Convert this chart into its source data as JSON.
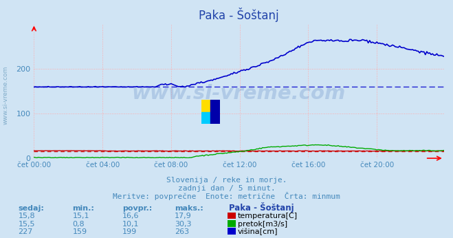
{
  "title": "Paka - Šoštanj",
  "background_color": "#d0e4f4",
  "plot_bg_color": "#d0e4f4",
  "grid_color": "#ffaaaa",
  "tick_color": "#4488bb",
  "title_color": "#2244aa",
  "text_color": "#4488bb",
  "watermark": "www.si-vreme.com",
  "subtitle_lines": [
    "Slovenija / reke in morje.",
    "zadnji dan / 5 minut.",
    "Meritve: povprečne  Enote: metrične  Črta: minmum"
  ],
  "legend_title": "Paka - Šoštanj",
  "legend_rows": [
    {
      "sedaj": "15,8",
      "min": "15,1",
      "povpr": "16,6",
      "maks": "17,9",
      "color": "#cc0000",
      "label": "temperatura[C]"
    },
    {
      "sedaj": "15,5",
      "min": "0,8",
      "povpr": "10,1",
      "maks": "30,3",
      "color": "#00aa00",
      "label": "pretok[m3/s]"
    },
    {
      "sedaj": "227",
      "min": "159",
      "povpr": "199",
      "maks": "263",
      "color": "#0000cc",
      "label": "višina[cm]"
    }
  ],
  "xtick_labels": [
    "čet 00:00",
    "čet 04:00",
    "čet 08:00",
    "čet 12:00",
    "čet 16:00",
    "čet 20:00"
  ],
  "xtick_positions": [
    0,
    48,
    96,
    144,
    192,
    240
  ],
  "total_points": 288,
  "ylim": [
    0,
    300
  ],
  "ytick_positions": [
    0,
    100,
    200
  ],
  "temp_color": "#cc0000",
  "pretok_color": "#00aa00",
  "visina_color": "#0000cc",
  "temp_min": 15.1,
  "pretok_min": 0.8,
  "visina_min": 159,
  "visina_avg": 199
}
